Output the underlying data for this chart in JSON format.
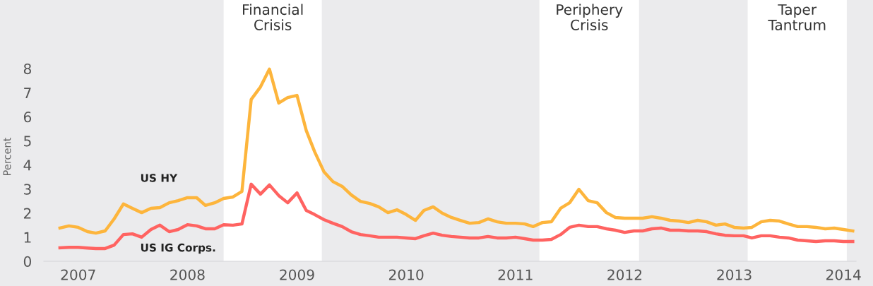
{
  "chart_data": {
    "type": "line",
    "ylabel": "Percent",
    "x": [
      "2006-11",
      "2006-12",
      "2007-01",
      "2007-02",
      "2007-03",
      "2007-04",
      "2007-05",
      "2007-06",
      "2007-07",
      "2007-08",
      "2007-09",
      "2007-10",
      "2007-11",
      "2007-12",
      "2008-01",
      "2008-02",
      "2008-03",
      "2008-04",
      "2008-05",
      "2008-06",
      "2008-07",
      "2008-08",
      "2008-09",
      "2008-10",
      "2008-11",
      "2008-12",
      "2009-01",
      "2009-02",
      "2009-03",
      "2009-04",
      "2009-05",
      "2009-06",
      "2009-07",
      "2009-08",
      "2009-09",
      "2009-10",
      "2009-11",
      "2009-12",
      "2010-01",
      "2010-02",
      "2010-03",
      "2010-04",
      "2010-05",
      "2010-06",
      "2010-07",
      "2010-08",
      "2010-09",
      "2010-10",
      "2010-11",
      "2010-12",
      "2011-01",
      "2011-02",
      "2011-03",
      "2011-04",
      "2011-05",
      "2011-06",
      "2011-07",
      "2011-08",
      "2011-09",
      "2011-10",
      "2011-11",
      "2011-12",
      "2012-01",
      "2012-02",
      "2012-03",
      "2012-04",
      "2012-05",
      "2012-06",
      "2012-07",
      "2012-08",
      "2012-09",
      "2012-10",
      "2012-11",
      "2012-12",
      "2013-01",
      "2013-02",
      "2013-03",
      "2013-04",
      "2013-05",
      "2013-06",
      "2013-07",
      "2013-08",
      "2013-09",
      "2013-10",
      "2013-11",
      "2013-12",
      "2014-01",
      "2014-02"
    ],
    "series": [
      {
        "name": "US HY",
        "color": "#fdb53c",
        "values": [
          1.38,
          1.47,
          1.41,
          1.23,
          1.17,
          1.26,
          1.76,
          2.38,
          2.2,
          2.02,
          2.2,
          2.23,
          2.43,
          2.52,
          2.64,
          2.64,
          2.32,
          2.43,
          2.61,
          2.67,
          2.9,
          6.72,
          7.24,
          7.98,
          6.57,
          6.8,
          6.89,
          5.43,
          4.55,
          3.72,
          3.31,
          3.11,
          2.76,
          2.49,
          2.4,
          2.26,
          2.02,
          2.14,
          1.94,
          1.7,
          2.11,
          2.26,
          2.0,
          1.82,
          1.7,
          1.58,
          1.61,
          1.76,
          1.64,
          1.58,
          1.58,
          1.55,
          1.44,
          1.61,
          1.64,
          2.2,
          2.43,
          2.99,
          2.52,
          2.43,
          2.02,
          1.82,
          1.79,
          1.79,
          1.79,
          1.85,
          1.79,
          1.7,
          1.67,
          1.61,
          1.7,
          1.64,
          1.5,
          1.55,
          1.41,
          1.38,
          1.41,
          1.64,
          1.7,
          1.67,
          1.55,
          1.44,
          1.44,
          1.41,
          1.35,
          1.38,
          1.32,
          1.26
        ]
      },
      {
        "name": "US IG Corps.",
        "color": "#ff6361",
        "values": [
          0.56,
          0.58,
          0.58,
          0.55,
          0.53,
          0.53,
          0.67,
          1.11,
          1.14,
          1.0,
          1.32,
          1.5,
          1.23,
          1.32,
          1.52,
          1.47,
          1.35,
          1.35,
          1.52,
          1.5,
          1.55,
          3.2,
          2.79,
          3.17,
          2.73,
          2.43,
          2.84,
          2.11,
          1.94,
          1.73,
          1.58,
          1.44,
          1.23,
          1.11,
          1.06,
          1.0,
          1.0,
          1.0,
          0.97,
          0.94,
          1.06,
          1.17,
          1.08,
          1.03,
          1.0,
          0.97,
          0.97,
          1.03,
          0.97,
          0.97,
          1.0,
          0.94,
          0.88,
          0.88,
          0.91,
          1.11,
          1.41,
          1.5,
          1.44,
          1.44,
          1.35,
          1.29,
          1.2,
          1.26,
          1.26,
          1.35,
          1.38,
          1.29,
          1.29,
          1.26,
          1.26,
          1.23,
          1.14,
          1.08,
          1.06,
          1.06,
          0.97,
          1.06,
          1.06,
          1.0,
          0.97,
          0.88,
          0.85,
          0.82,
          0.85,
          0.85,
          0.82,
          0.82
        ]
      }
    ],
    "xticks": [
      {
        "value": "2007-01-01",
        "label": "2007"
      },
      {
        "value": "2008-01-01",
        "label": "2008"
      },
      {
        "value": "2009-01-01",
        "label": "2009"
      },
      {
        "value": "2010-01-01",
        "label": "2010"
      },
      {
        "value": "2011-01-01",
        "label": "2011"
      },
      {
        "value": "2012-01-01",
        "label": "2012"
      },
      {
        "value": "2013-01-01",
        "label": "2013"
      },
      {
        "value": "2014-01-01",
        "label": "2014"
      }
    ],
    "xlim": [
      "2006-09-08",
      "2014-02-12"
    ],
    "ylim": [
      0,
      10.85
    ],
    "yticks": [
      0,
      1,
      2,
      3,
      4,
      5,
      6,
      7,
      8
    ],
    "bands": [
      {
        "axis": "x",
        "from": "2008-05-01",
        "to": "2009-03-25",
        "label": "Financial\nCrisis",
        "color": "#ffffff"
      },
      {
        "axis": "x",
        "from": "2011-03-22",
        "to": "2012-02-18",
        "label": "Periphery\nCrisis",
        "color": "#ffffff"
      },
      {
        "axis": "x",
        "from": "2013-02-15",
        "to": "2014-01-12",
        "label": "Taper\nTantrum",
        "color": "#ffffff"
      }
    ],
    "grid": false,
    "legend": false,
    "marker": "none",
    "line_style": "solid"
  }
}
